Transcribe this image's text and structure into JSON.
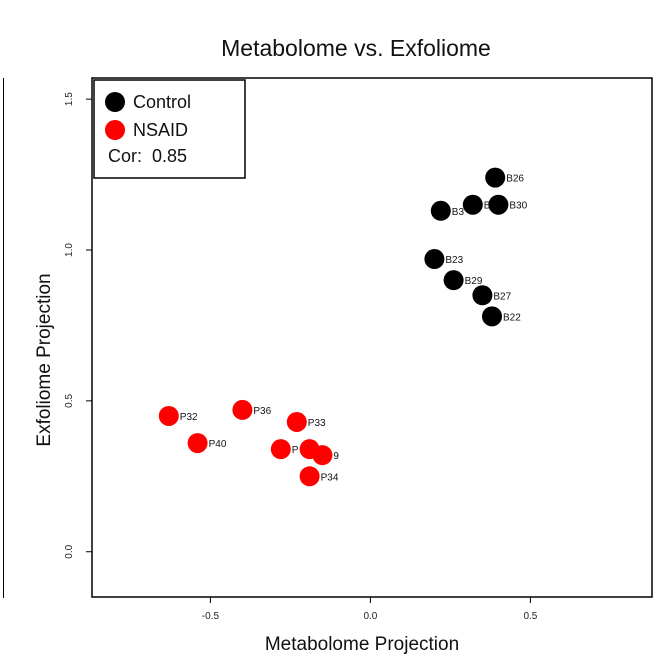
{
  "chart_data": {
    "type": "scatter",
    "title": "Metabolome vs. Exfoliome",
    "xlabel": "Metabolome Projection",
    "ylabel": "Exfoliome Projection",
    "xlim": [
      -0.87,
      0.88
    ],
    "ylim": [
      -0.15,
      1.57
    ],
    "x_ticks": [
      -0.5,
      0.0,
      0.5
    ],
    "x_tick_labels": [
      "-0.5",
      "0.0",
      "0.5"
    ],
    "y_ticks": [
      0.0,
      0.5,
      1.0,
      1.5
    ],
    "y_tick_labels": [
      "0.0",
      "0.5",
      "1.0",
      "1.5"
    ],
    "grid": false,
    "legend": {
      "position": "top-left",
      "entries": [
        {
          "name": "Control",
          "color": "#000000"
        },
        {
          "name": "NSAID",
          "color": "#ff0000"
        }
      ],
      "annotation": "Cor:  0.85"
    },
    "series": [
      {
        "name": "Control",
        "color": "#000000",
        "points": [
          {
            "label": "B26",
            "x": 0.39,
            "y": 1.24
          },
          {
            "label": "B30",
            "x": 0.4,
            "y": 1.15
          },
          {
            "label": "B",
            "x": 0.32,
            "y": 1.15
          },
          {
            "label": "B3",
            "x": 0.22,
            "y": 1.13
          },
          {
            "label": "B23",
            "x": 0.2,
            "y": 0.97
          },
          {
            "label": "B29",
            "x": 0.26,
            "y": 0.9
          },
          {
            "label": "B27",
            "x": 0.35,
            "y": 0.85
          },
          {
            "label": "B22",
            "x": 0.38,
            "y": 0.78
          }
        ]
      },
      {
        "name": "NSAID",
        "color": "#ff0000",
        "points": [
          {
            "label": "P32",
            "x": -0.63,
            "y": 0.45
          },
          {
            "label": "P36",
            "x": -0.4,
            "y": 0.47
          },
          {
            "label": "P33",
            "x": -0.23,
            "y": 0.43
          },
          {
            "label": "P40",
            "x": -0.54,
            "y": 0.36
          },
          {
            "label": "P",
            "x": -0.28,
            "y": 0.34
          },
          {
            "label": "",
            "x": -0.19,
            "y": 0.34
          },
          {
            "label": "9",
            "x": -0.15,
            "y": 0.32
          },
          {
            "label": "P34",
            "x": -0.19,
            "y": 0.25
          }
        ]
      }
    ]
  }
}
